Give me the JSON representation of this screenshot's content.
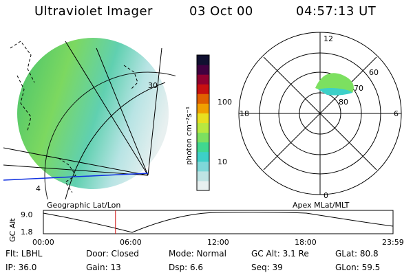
{
  "header": {
    "title": "Ultraviolet Imager",
    "date": "03 Oct 00",
    "time": "04:57:13 UT"
  },
  "colorbar": {
    "unit_label": "photon cm⁻²s⁻¹",
    "ticks": [
      "100",
      "10"
    ],
    "colors": [
      "#e8f0f0",
      "#bfe4e4",
      "#7fd8d8",
      "#3dd0c8",
      "#40d890",
      "#7ce060",
      "#b8e840",
      "#e8e020",
      "#f0a000",
      "#e06000",
      "#c81010",
      "#900030",
      "#400040",
      "#101030"
    ]
  },
  "left_panel": {
    "label": "Geographic Lat/Lon",
    "grid_labels": [
      "30",
      "4"
    ]
  },
  "right_panel": {
    "label": "Apex MLat/MLT",
    "mlt_labels": [
      "12",
      "18",
      "6",
      "0"
    ],
    "mlat_labels": [
      "60",
      "70",
      "80"
    ]
  },
  "altitude_plot": {
    "ylabel": "GC Alt",
    "yticks": [
      "9.0",
      "1.8"
    ],
    "xticks": [
      "00:00",
      "06:00",
      "12:00",
      "18:00",
      "23:59"
    ],
    "current_time_hours": 4.95
  },
  "info": {
    "row1": [
      {
        "label": "Flt:",
        "value": "LBHL"
      },
      {
        "label": "Door:",
        "value": "Closed"
      },
      {
        "label": "Mode:",
        "value": "Normal"
      },
      {
        "label": "GC Alt:",
        "value": "3.1 Re"
      },
      {
        "label": "GLat:",
        "value": "80.8"
      }
    ],
    "row2": [
      {
        "label": "IP:",
        "value": "36.0"
      },
      {
        "label": "Gain:",
        "value": "13"
      },
      {
        "label": "Dsp:",
        "value": "6.6"
      },
      {
        "label": "Seq:",
        "value": "39"
      },
      {
        "label": "GLon:",
        "value": "59.5"
      }
    ]
  }
}
